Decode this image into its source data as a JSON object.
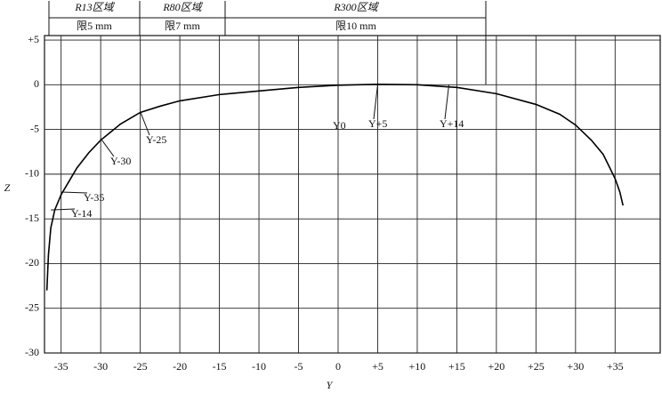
{
  "chart_data": {
    "type": "line",
    "x_label": "Y",
    "y_label": "Z",
    "xlim": [
      -37.1,
      40.7
    ],
    "ylim": [
      -30,
      5.5
    ],
    "xticks": [
      -35,
      -30,
      -25,
      -20,
      -15,
      -10,
      -5,
      0,
      {
        "value": 5,
        "label": "+5"
      },
      {
        "value": 10,
        "label": "+10"
      },
      {
        "value": 15,
        "label": "+15"
      },
      {
        "value": 20,
        "label": "+20"
      },
      {
        "value": 25,
        "label": "+25"
      },
      {
        "value": 30,
        "label": "+30"
      },
      {
        "value": 35,
        "label": "+35"
      }
    ],
    "yticks": [
      {
        "value": 5,
        "label": "+5"
      },
      0,
      -5,
      -10,
      -15,
      -20,
      -25,
      -30
    ],
    "grid": true,
    "x": [
      -36.8,
      -36.6,
      -36.3,
      -35.8,
      -35,
      -34,
      -33,
      -31.5,
      -30,
      -27.5,
      -25,
      -22.5,
      -20,
      -15,
      -10,
      -5,
      0,
      5,
      10,
      15,
      20,
      25,
      28,
      30,
      32,
      33.5,
      35,
      35.6,
      36
    ],
    "series": [
      {
        "color": "#000000",
        "values": [
          -23,
          -19,
          -16,
          -14,
          -12.3,
          -10.8,
          -9.3,
          -7.6,
          -6.2,
          -4.4,
          -3.1,
          -2.4,
          -1.8,
          -1.1,
          -0.7,
          -0.3,
          -0.05,
          0.05,
          0,
          -0.3,
          -1,
          -2.2,
          -3.3,
          -4.5,
          -6.2,
          -7.8,
          -10.5,
          -12,
          -13.5
        ]
      }
    ],
    "regions": [
      {
        "name": "R13区域",
        "limit": "限5 mm"
      },
      {
        "name": "R80区域",
        "limit": "限7 mm"
      },
      {
        "name": "R300区域",
        "limit": "限10 mm"
      }
    ],
    "annotations": [
      {
        "text": "Y-14",
        "x": -36.3,
        "y": -14
      },
      {
        "text": "Y-35",
        "x": -35,
        "y": -12
      },
      {
        "text": "Y-30",
        "x": -30,
        "y": -6
      },
      {
        "text": "Y-25",
        "x": -25,
        "y": -3
      },
      {
        "text": "Y0",
        "x": 0,
        "y": 0
      },
      {
        "text": "Y+5",
        "x": 5,
        "y": 0
      },
      {
        "text": "Y+14",
        "x": 14,
        "y": 0
      }
    ]
  }
}
